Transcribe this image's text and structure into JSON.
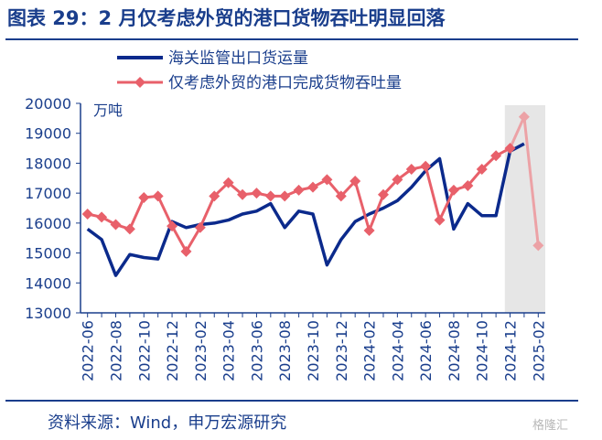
{
  "header": {
    "title": "图表 29：2 月仅考虑外贸的港口货物吞吐明显回落"
  },
  "footer": {
    "source": "资料来源：Wind，申万宏源研究",
    "watermark": "格隆汇"
  },
  "colors": {
    "series_container": "#0b2a8c",
    "series_cargo": "#e8606a",
    "series_cargo_highlight": "#eca2a6",
    "axis": "#1a3e8c",
    "shade": "#e6e6e6"
  },
  "chart_data": {
    "type": "line",
    "title": "2 月仅考虑外贸的港口货物吞吐明显回落",
    "ylabel": "万吨",
    "xlabel": "",
    "ylim": [
      13000,
      20000
    ],
    "yticks": [
      "13000",
      "14000",
      "15000",
      "16000",
      "17000",
      "18000",
      "19000",
      "20000"
    ],
    "x": [
      "2022-06",
      "2022-07",
      "2022-08",
      "2022-09",
      "2022-10",
      "2022-11",
      "2022-12",
      "2023-01",
      "2023-02",
      "2023-03",
      "2023-04",
      "2023-05",
      "2023-06",
      "2023-07",
      "2023-08",
      "2023-09",
      "2023-10",
      "2023-11",
      "2023-12",
      "2024-01",
      "2024-02",
      "2024-03",
      "2024-04",
      "2024-05",
      "2024-06",
      "2024-07",
      "2024-08",
      "2024-09",
      "2024-10",
      "2024-11",
      "2024-12",
      "2025-01",
      "2025-02"
    ],
    "xticks": [
      "2022-06",
      "2022-08",
      "2022-10",
      "2022-12",
      "2023-02",
      "2023-04",
      "2023-06",
      "2023-08",
      "2023-10",
      "2023-12",
      "2024-02",
      "2024-04",
      "2024-06",
      "2024-08",
      "2024-10",
      "2024-12",
      "2025-02"
    ],
    "shaded_from": "2024-12",
    "series": [
      {
        "name": "海关监管出口货运量",
        "values": [
          15800,
          15450,
          14250,
          14950,
          14850,
          14800,
          16050,
          15850,
          15950,
          16000,
          16100,
          16300,
          16400,
          16650,
          15850,
          16400,
          16300,
          14600,
          15450,
          16050,
          16300,
          16500,
          16750,
          17200,
          17750,
          18150,
          15800,
          16650,
          16250,
          16250,
          18400,
          18650,
          null
        ]
      },
      {
        "name": "仅考虑外贸的港口完成货物吞吐量",
        "values": [
          16300,
          16200,
          15950,
          15800,
          16850,
          16900,
          15900,
          15050,
          15850,
          16900,
          17350,
          16950,
          17000,
          16900,
          16900,
          17100,
          17200,
          17450,
          16900,
          17400,
          15750,
          16950,
          17450,
          17800,
          17900,
          16100,
          17100,
          17250,
          17800,
          18250,
          18500,
          19550,
          15250
        ]
      }
    ]
  }
}
